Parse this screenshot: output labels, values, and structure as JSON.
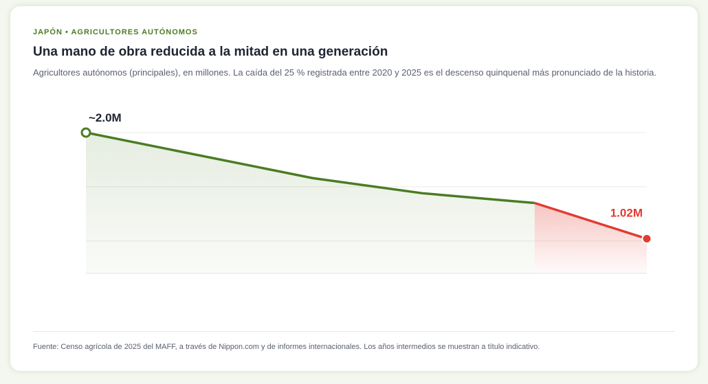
{
  "kicker": "JAPÓN • AGRICULTORES AUTÓNOMOS",
  "chart_data": {
    "type": "line",
    "title": "Una mano de obra reducida a la mitad en una generación",
    "subtitle": "Agricultores autónomos (principales), en millones. La caída del 25 % registrada entre 2020 y 2025 es el descenso quinquenal más pronunciado de la historia.",
    "categories": [
      null,
      null,
      null,
      null,
      null
    ],
    "series": [
      {
        "color": "#4a7c23",
        "values": [
          2.0,
          1.58,
          1.44,
          1.35,
          null
        ],
        "value_labels": [
          "~2.0M",
          null,
          null,
          null,
          null
        ]
      },
      {
        "color": "#e03c31",
        "values": [
          null,
          null,
          null,
          1.35,
          1.02
        ],
        "value_labels": [
          null,
          null,
          null,
          null,
          "1.02M"
        ]
      }
    ],
    "ylim": [
      0.7,
      2.0
    ],
    "yticks": [
      1.0,
      1.5,
      2.0
    ],
    "grid": true,
    "source": "Fuente: Censo agrícola de 2025 del MAFF, a través de Nippon.com y de informes internacionales. Los años intermedios se muestran a título indicativo."
  }
}
